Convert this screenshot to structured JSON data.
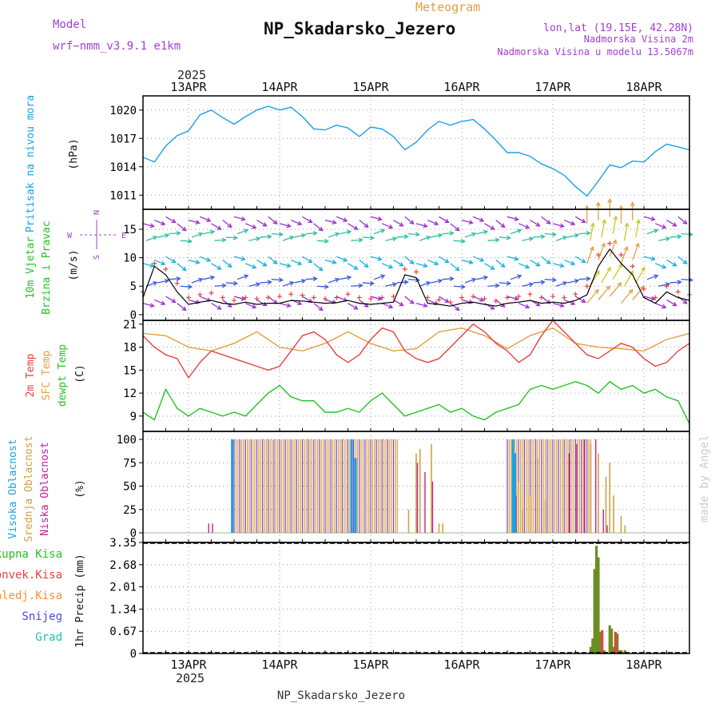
{
  "header": {
    "subtitle": "Meteogram",
    "station": "NP_Skadarsko_Jezero",
    "model_label": "Model",
    "model_value": "wrf−nmm_v3.9.1  e1km",
    "coords": "lon,lat (19.15E, 42.28N)",
    "elevation": "Nadmorska Visina 2m",
    "model_elevation": "Nadmorska Visina u modelu 13.5067m",
    "footer_station": "NP_Skadarsko_Jezero",
    "credit": "made by Angel",
    "year": "2025"
  },
  "colors": {
    "pressure": "#1aa0e6",
    "temp2m": "#e84040",
    "sfc_temp": "#e0a040",
    "dewpoint": "#22c322",
    "cloud_high": "#1aa0e6",
    "cloud_mid": "#d4a040",
    "cloud_low": "#c0209a",
    "precip_total": "#6b8e23",
    "precip_conv": "#e84040",
    "precip_frozen": "#ff8c3a",
    "snow": "#4a4adf",
    "graupel": "#20c0b0",
    "magenta_text": "#a040d0",
    "wind_magenta": "#9b30d0"
  },
  "chart_data": [
    {
      "type": "line",
      "panel": "pressure",
      "ylabel_left": "Pritisak na nivou mora",
      "ylabel_unit": "(hPa)",
      "yticks": [
        1011,
        1014,
        1017,
        1020
      ],
      "ylim": [
        1009.5,
        1021.5
      ],
      "xticks": [
        "13APR",
        "14APR",
        "15APR",
        "16APR",
        "17APR",
        "18APR"
      ],
      "xlim_hours": [
        0,
        144
      ],
      "grid": true,
      "series": [
        {
          "name": "",
          "x": [
            0,
            3,
            6,
            9,
            12,
            15,
            18,
            21,
            24,
            27,
            30,
            33,
            36,
            39,
            42,
            45,
            48,
            51,
            54,
            57,
            60,
            63,
            66,
            69,
            72,
            75,
            78,
            81,
            84,
            87,
            90,
            93,
            96,
            99,
            102,
            105,
            108,
            111,
            114,
            117,
            120,
            123,
            126,
            129,
            132,
            135,
            138,
            141,
            144
          ],
          "values": [
            1015.0,
            1014.5,
            1016.2,
            1017.3,
            1017.8,
            1019.5,
            1020.0,
            1019.2,
            1018.5,
            1019.3,
            1020.0,
            1020.4,
            1020.0,
            1020.3,
            1019.3,
            1018.0,
            1017.9,
            1018.4,
            1018.1,
            1017.2,
            1018.2,
            1018.0,
            1017.2,
            1015.8,
            1016.6,
            1017.9,
            1018.8,
            1018.4,
            1018.8,
            1019.0,
            1018.0,
            1016.8,
            1015.5,
            1015.5,
            1015.1,
            1014.3,
            1013.8,
            1013.1,
            1011.9,
            1010.9,
            1012.5,
            1014.2,
            1013.9,
            1014.6,
            1014.5,
            1015.6,
            1016.4,
            1016.1,
            1015.8
          ]
        }
      ]
    },
    {
      "type": "scatter",
      "panel": "wind",
      "ylabel_left": "10m Vjetar Brzina i Pravac",
      "ylabel_unit": "(m/s)",
      "compass": {
        "n": "N",
        "s": "S",
        "e": "E",
        "w": "W"
      },
      "yticks": [
        0,
        5,
        10,
        15
      ],
      "ylim": [
        -1,
        18.5
      ],
      "grid": true,
      "speed": [
        3.0,
        8.5,
        7.0,
        4.0,
        1.8,
        2.2,
        2.5,
        2.0,
        1.8,
        2.2,
        1.8,
        2.0,
        2.0,
        2.5,
        2.4,
        2.2,
        2.0,
        2.1,
        2.5,
        2.0,
        1.8,
        2.0,
        2.2,
        7.0,
        6.5,
        2.0,
        1.8,
        1.5,
        2.0,
        2.2,
        1.8,
        1.5,
        2.0,
        2.2,
        2.5,
        2.0,
        2.2,
        2.0,
        2.5,
        3.5,
        8.5,
        11.5,
        9.0,
        7.0,
        3.0,
        2.0,
        4.0,
        3.0,
        2.5
      ],
      "gust": [
        4.0,
        9.0,
        8.0,
        5.5,
        3.0,
        3.5,
        3.8,
        3.0,
        2.5,
        3.0,
        2.8,
        3.0,
        3.2,
        3.6,
        3.4,
        3.0,
        2.8,
        3.0,
        3.6,
        3.0,
        2.8,
        3.0,
        3.2,
        8.0,
        7.5,
        3.0,
        2.6,
        2.2,
        3.0,
        3.2,
        2.8,
        2.4,
        3.0,
        3.2,
        3.6,
        3.0,
        3.2,
        3.0,
        3.6,
        5.0,
        10.5,
        12.5,
        10.5,
        8.5,
        4.5,
        3.0,
        5.0,
        4.0,
        3.5
      ]
    },
    {
      "type": "line",
      "panel": "temperature",
      "ylabel_temp": "2m Temp",
      "ylabel_sfc": "SFC Temp",
      "ylabel_dew": "dewpt Temp",
      "ylabel_unit": "(C)",
      "yticks": [
        9,
        12,
        15,
        18,
        21
      ],
      "ylim": [
        7,
        21.5
      ],
      "grid": true,
      "series": [
        {
          "name": "2m Temp",
          "x": [
            0,
            3,
            6,
            9,
            12,
            15,
            18,
            21,
            24,
            27,
            30,
            33,
            36,
            39,
            42,
            45,
            48,
            51,
            54,
            57,
            60,
            63,
            66,
            69,
            72,
            75,
            78,
            81,
            84,
            87,
            90,
            93,
            96,
            99,
            102,
            105,
            108,
            111,
            114,
            117,
            120,
            123,
            126,
            129,
            132,
            135,
            138,
            141,
            144
          ],
          "values": [
            19.5,
            18.0,
            17.0,
            16.5,
            14.0,
            16.0,
            17.5,
            17.0,
            16.5,
            16.0,
            15.5,
            15.0,
            15.5,
            17.5,
            19.5,
            20.0,
            19.0,
            17.0,
            16.0,
            17.0,
            19.0,
            20.5,
            20.0,
            17.5,
            16.5,
            16.0,
            16.5,
            18.0,
            19.5,
            21.0,
            20.0,
            18.5,
            17.5,
            16.0,
            17.0,
            19.5,
            21.5,
            20.0,
            18.5,
            17.0,
            16.5,
            17.5,
            18.5,
            18.0,
            16.5,
            15.5,
            16.0,
            17.5,
            18.5
          ]
        },
        {
          "name": "SFC Temp",
          "x": [
            0,
            6,
            12,
            18,
            24,
            30,
            36,
            42,
            48,
            54,
            60,
            66,
            72,
            78,
            84,
            90,
            96,
            102,
            108,
            114,
            120,
            126,
            132,
            138,
            144
          ],
          "values": [
            19.8,
            19.5,
            18.0,
            17.5,
            18.5,
            20.0,
            18.0,
            17.5,
            18.5,
            20.0,
            18.5,
            17.5,
            17.8,
            20.0,
            20.5,
            19.5,
            17.8,
            19.5,
            20.5,
            18.5,
            18.0,
            17.8,
            17.5,
            19.0,
            19.8
          ]
        },
        {
          "name": "dewpt Temp",
          "x": [
            0,
            3,
            6,
            9,
            12,
            15,
            18,
            21,
            24,
            27,
            30,
            33,
            36,
            39,
            42,
            45,
            48,
            51,
            54,
            57,
            60,
            63,
            66,
            69,
            72,
            75,
            78,
            81,
            84,
            87,
            90,
            93,
            96,
            99,
            102,
            105,
            108,
            111,
            114,
            117,
            120,
            123,
            126,
            129,
            132,
            135,
            138,
            141,
            144
          ],
          "values": [
            9.5,
            8.5,
            12.5,
            10.0,
            9.0,
            10.0,
            9.5,
            9.0,
            9.5,
            9.0,
            10.5,
            12.0,
            13.0,
            11.5,
            11.0,
            11.0,
            9.5,
            9.5,
            10.0,
            9.5,
            11.0,
            12.0,
            10.5,
            9.0,
            9.5,
            10.0,
            10.5,
            9.5,
            10.0,
            9.0,
            8.5,
            9.5,
            10.0,
            10.5,
            12.5,
            13.0,
            12.5,
            13.0,
            13.5,
            13.0,
            12.0,
            13.5,
            12.5,
            13.0,
            12.0,
            12.5,
            11.5,
            11.0,
            8.0
          ]
        }
      ]
    },
    {
      "type": "bar",
      "panel": "clouds",
      "ylabel_high": "Visoka Oblacnost",
      "ylabel_mid": "Srednja Oblacnost",
      "ylabel_low": "Niska Oblacnost",
      "ylabel_unit": "(%)",
      "yticks": [
        0,
        25,
        50,
        75,
        100
      ],
      "ylim": [
        0,
        100
      ],
      "grid": true,
      "high_hours": [
        23.5,
        55.0,
        56.0,
        97.5,
        98.0
      ],
      "high_values": [
        100,
        100,
        80,
        100,
        85
      ],
      "mid_blocks": [
        [
          24,
          67,
          100
        ],
        [
          96,
          118,
          100
        ]
      ],
      "mid_extra": [
        [
          70,
          25
        ],
        [
          72,
          85
        ],
        [
          73,
          90
        ],
        [
          76,
          95
        ],
        [
          78,
          10
        ],
        [
          79,
          10
        ],
        [
          99,
          55
        ],
        [
          100,
          25
        ],
        [
          102,
          40
        ],
        [
          104,
          80
        ],
        [
          106,
          35
        ],
        [
          118,
          95
        ],
        [
          120,
          85
        ],
        [
          122,
          60
        ],
        [
          123,
          75
        ],
        [
          124,
          40
        ],
        [
          126,
          18
        ],
        [
          127,
          8
        ]
      ],
      "low_values": [
        [
          17,
          10
        ],
        [
          18,
          10
        ],
        [
          72,
          75
        ],
        [
          74,
          65
        ],
        [
          76,
          55
        ],
        [
          98,
          40
        ],
        [
          112,
          85
        ],
        [
          114,
          95
        ],
        [
          116,
          100
        ],
        [
          119,
          100
        ],
        [
          121,
          25
        ],
        [
          122,
          8
        ]
      ]
    },
    {
      "type": "bar",
      "panel": "precip",
      "ylabel_total": "Ukupna Kisa",
      "ylabel_conv": "Konvek.Kisa",
      "ylabel_frozen": "Zaledj.Kisa",
      "ylabel_snow": "Snijeg",
      "ylabel_grad": "Grad",
      "ylabel_unit": "1hr Precip (mm)",
      "yticks": [
        0,
        0.67,
        1.34,
        2.01,
        2.68,
        3.35
      ],
      "ylim": [
        0,
        3.35
      ],
      "grid": true,
      "total_x": [
        118.0,
        118.5,
        119.0,
        119.5,
        120.0,
        120.5,
        121.5,
        122.0,
        123.0,
        123.5,
        124.0,
        125.0,
        126.0,
        126.5,
        127.0
      ],
      "total_values": [
        0.2,
        0.45,
        2.55,
        3.25,
        2.9,
        0.65,
        0.1,
        0.05,
        0.85,
        0.75,
        0.2,
        0.6,
        0.1,
        0.05,
        0.1
      ],
      "conv_x": [
        121.0,
        124.5,
        125.5
      ],
      "conv_values": [
        0.7,
        0.65,
        0.1
      ]
    }
  ]
}
